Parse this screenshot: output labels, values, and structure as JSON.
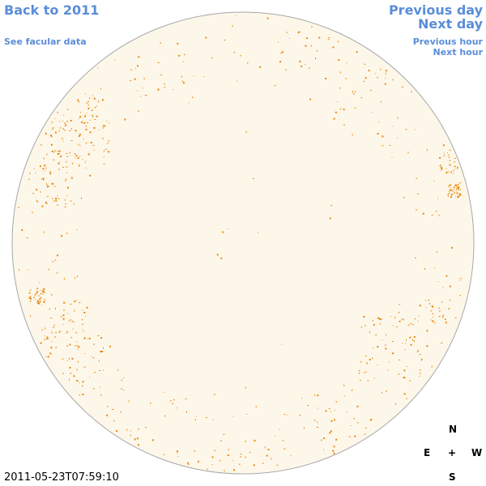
{
  "colors": {
    "link": "#5b8dd9",
    "disk_fill": "#fdf7ea",
    "disk_border": "#a8a8a8",
    "facula": "#e8890c",
    "text": "#000000"
  },
  "nav": {
    "back_label": "Back to 2011",
    "facular_label": "See facular data",
    "prev_day_label": "Previous day",
    "next_day_label": "Next day",
    "prev_hour_label": "Previous hour",
    "next_hour_label": "Next hour"
  },
  "timestamp": "2011-05-23T07:59:10",
  "compass": {
    "north": "N",
    "south": "S",
    "east": "E",
    "west": "W",
    "center": "+"
  }
}
